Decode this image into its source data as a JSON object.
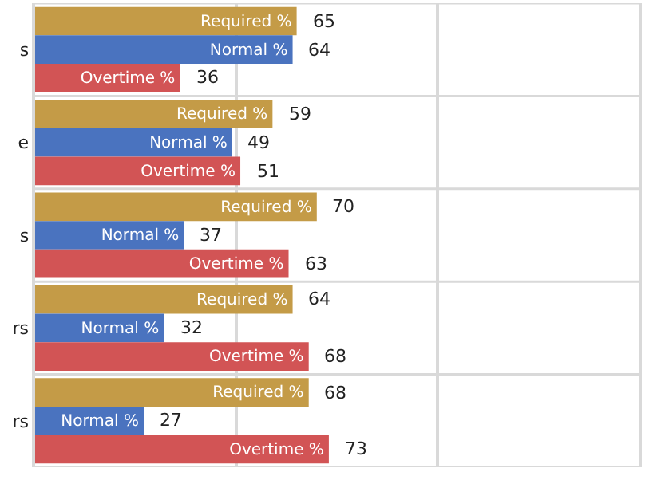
{
  "chart_data": {
    "type": "bar",
    "orientation": "horizontal",
    "categories": [
      "s",
      "e",
      "s",
      "rs",
      "rs"
    ],
    "series": [
      {
        "name": "Required %",
        "color": "#c49b47",
        "values": [
          65,
          59,
          70,
          64,
          68
        ]
      },
      {
        "name": "Normal %",
        "color": "#4a73bf",
        "values": [
          64,
          49,
          37,
          32,
          27
        ]
      },
      {
        "name": "Overtime %",
        "color": "#d25455",
        "values": [
          36,
          51,
          63,
          68,
          73
        ]
      }
    ],
    "xlim": [
      0,
      150
    ],
    "xticks": [
      {
        "value": 50,
        "label": null
      },
      {
        "value": 100,
        "label": null
      }
    ],
    "tick_labels": "y",
    "grid": true,
    "legend": false,
    "data_labels": true
  }
}
